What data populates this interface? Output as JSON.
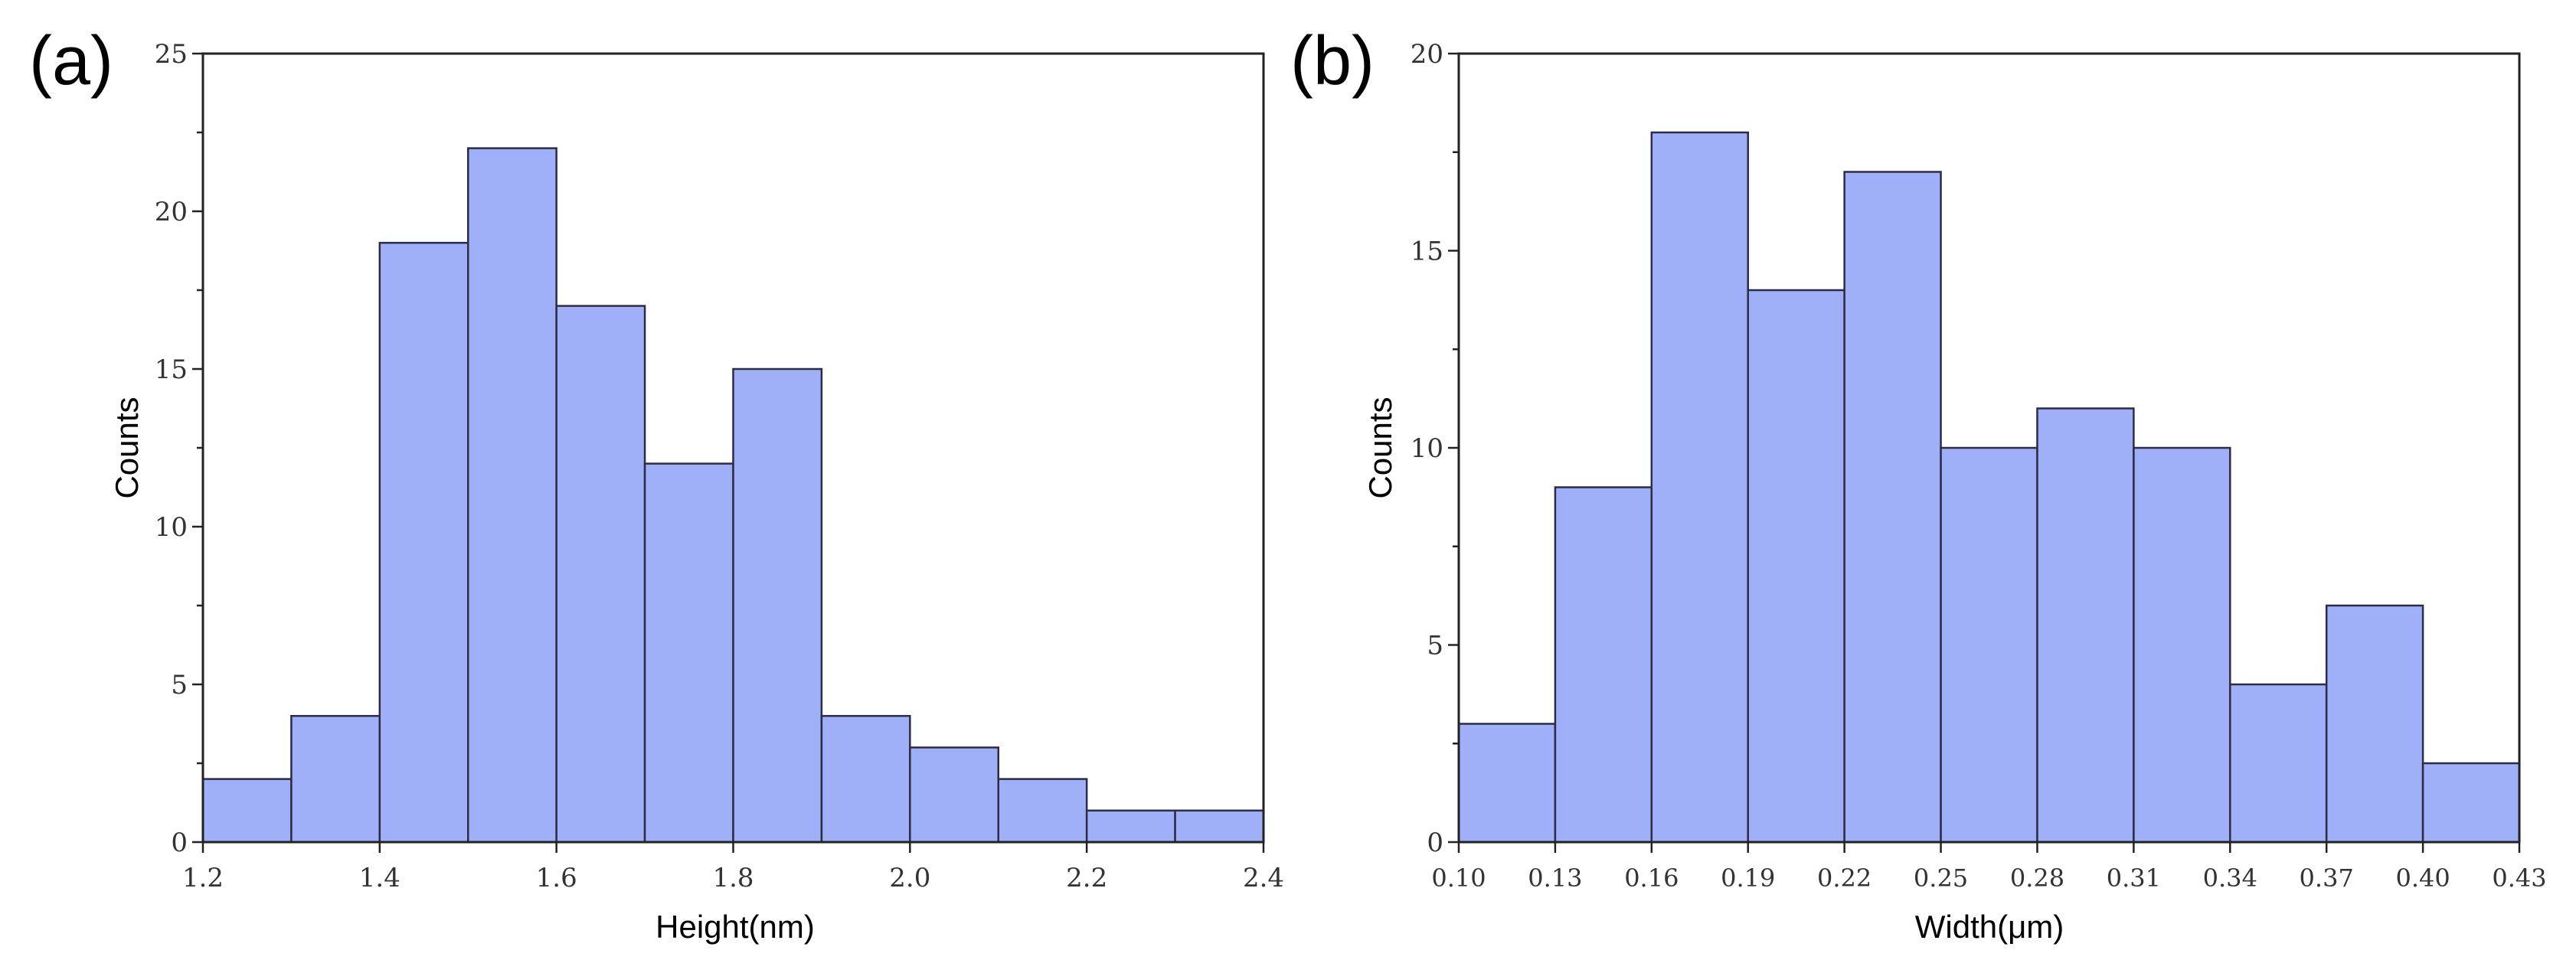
{
  "chart_data": [
    {
      "type": "bar",
      "panel_label": "(a)",
      "xlabel": "Height(nm)",
      "ylabel": "Counts",
      "xlim": [
        1.2,
        2.4
      ],
      "ylim": [
        0,
        25
      ],
      "bin_edges": [
        1.2,
        1.3,
        1.4,
        1.5,
        1.6,
        1.7,
        1.8,
        1.9,
        2.0,
        2.1,
        2.2,
        2.3,
        2.4
      ],
      "values": [
        2,
        4,
        19,
        22,
        17,
        12,
        15,
        4,
        3,
        2,
        1,
        1
      ],
      "xticks": [
        1.2,
        1.4,
        1.6,
        1.8,
        2.0,
        2.2,
        2.4
      ],
      "xtick_labels": [
        "1.2",
        "1.4",
        "1.6",
        "1.8",
        "2.0",
        "2.2",
        "2.4"
      ],
      "yticks": [
        0,
        5,
        10,
        15,
        20,
        25
      ],
      "ytick_labels": [
        "0",
        "5",
        "10",
        "15",
        "20",
        "25"
      ],
      "colors": {
        "bar_fill": "#a0b0f8",
        "bar_edge": "#2c2c44"
      }
    },
    {
      "type": "bar",
      "panel_label": "(b)",
      "xlabel": "Width(μm)",
      "ylabel": "Counts",
      "xlim": [
        0.1,
        0.43
      ],
      "ylim": [
        0,
        20
      ],
      "bin_edges": [
        0.1,
        0.13,
        0.16,
        0.19,
        0.22,
        0.25,
        0.28,
        0.31,
        0.34,
        0.37,
        0.4,
        0.43
      ],
      "values": [
        3,
        9,
        18,
        14,
        17,
        10,
        11,
        10,
        4,
        6,
        2
      ],
      "xticks": [
        0.1,
        0.13,
        0.16,
        0.19,
        0.22,
        0.25,
        0.28,
        0.31,
        0.34,
        0.37,
        0.4,
        0.43
      ],
      "xtick_labels": [
        "0.10",
        "0.13",
        "0.16",
        "0.19",
        "0.22",
        "0.25",
        "0.28",
        "0.31",
        "0.34",
        "0.37",
        "0.40",
        "0.43"
      ],
      "yticks": [
        0,
        5,
        10,
        15,
        20
      ],
      "ytick_labels": [
        "0",
        "5",
        "10",
        "15",
        "20"
      ],
      "colors": {
        "bar_fill": "#a0b0f8",
        "bar_edge": "#2c2c44"
      }
    }
  ]
}
